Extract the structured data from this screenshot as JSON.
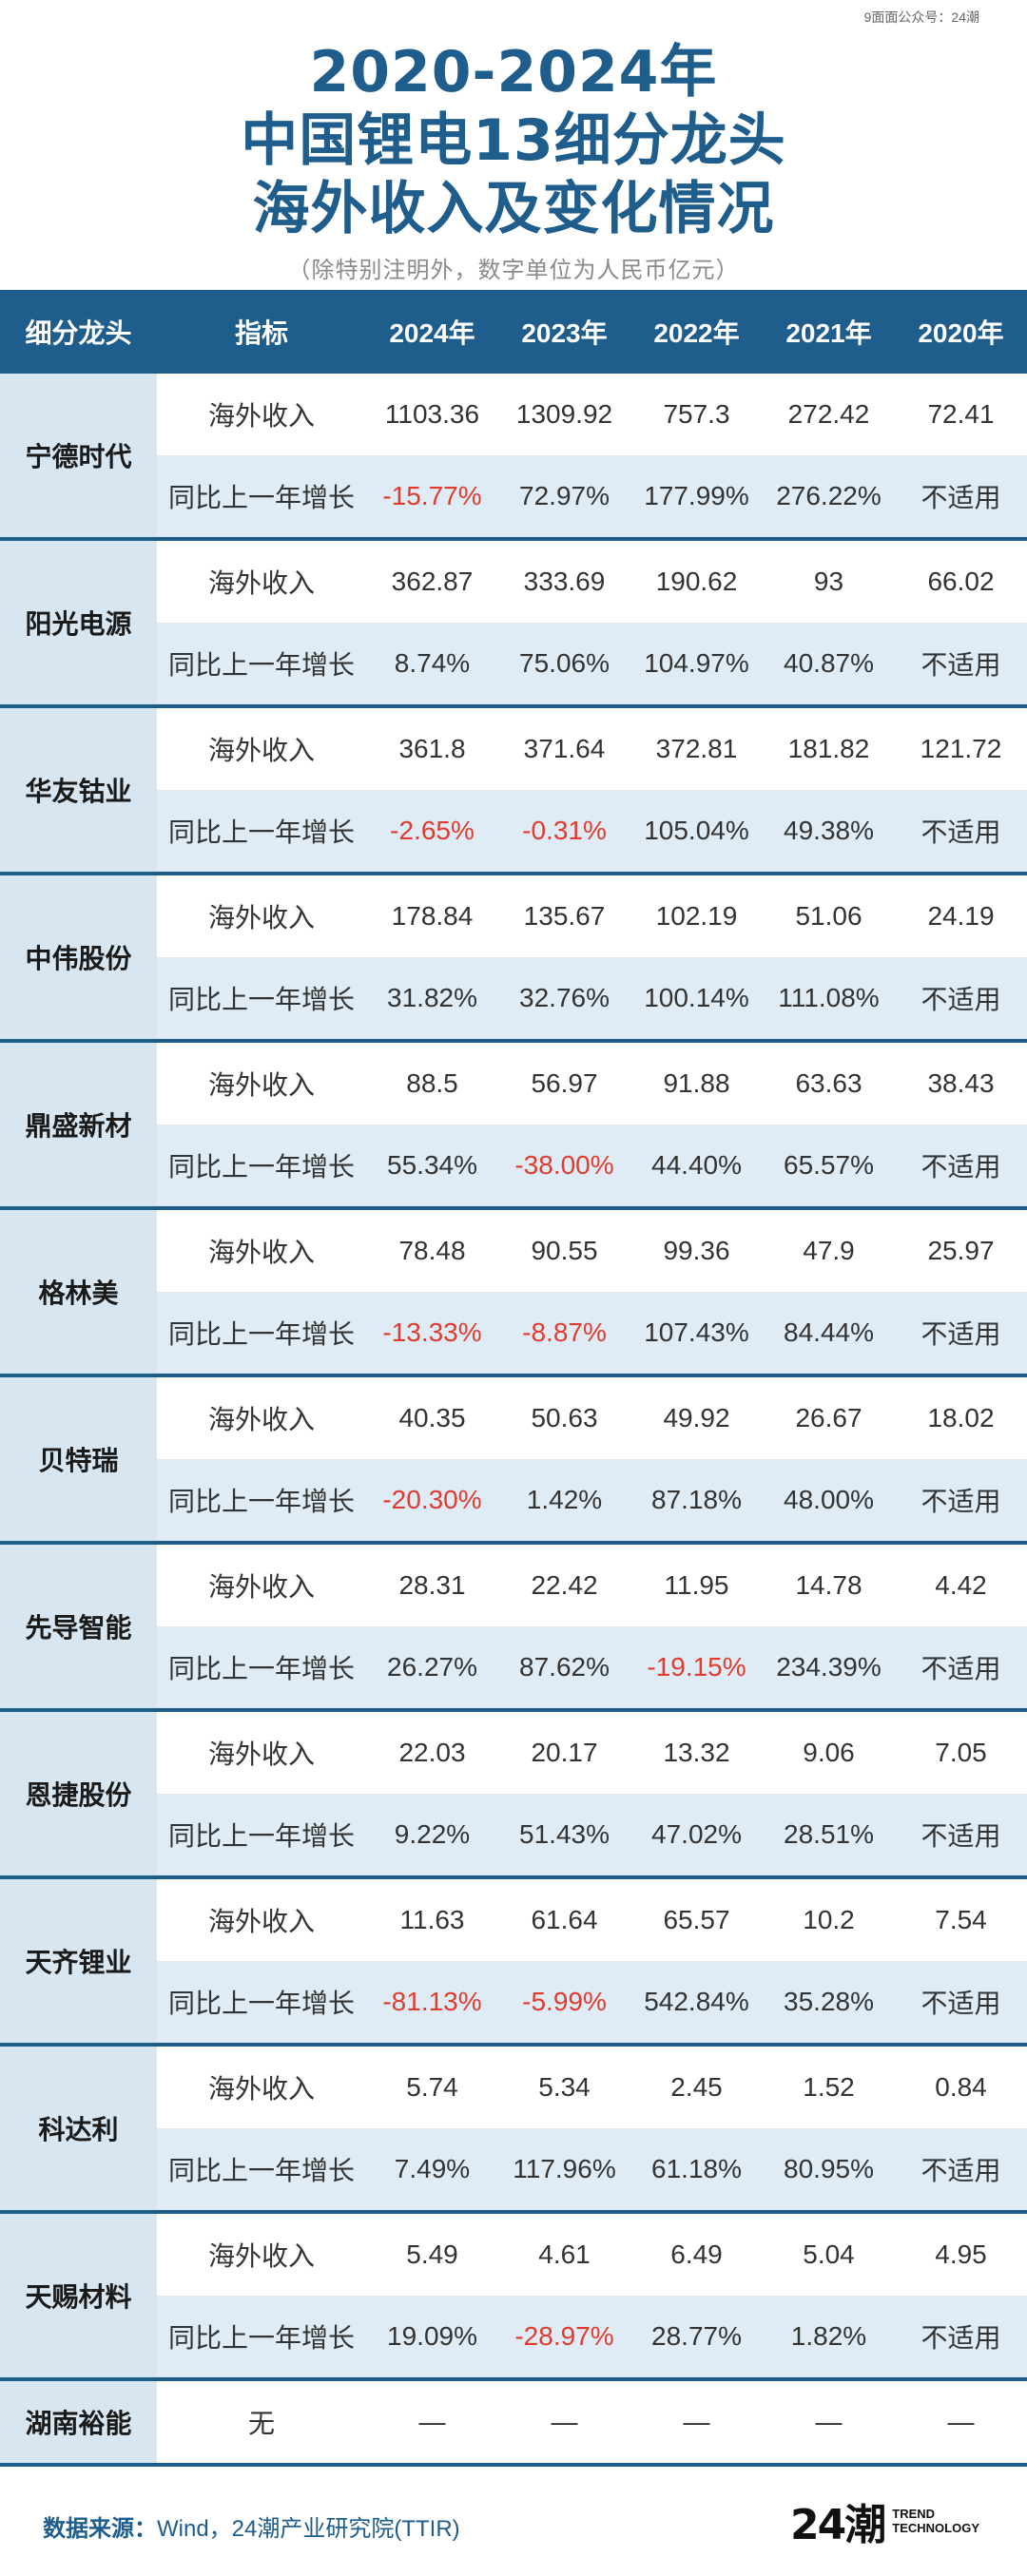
{
  "watermark": "9面面公众号：24潮",
  "title": {
    "line1": "2020-2024年",
    "line2": "中国锂电13细分龙头",
    "line3": "海外收入及变化情况",
    "note": "（除特别注明外，数字单位为人民币亿元）"
  },
  "table": {
    "headers": [
      "细分龙头",
      "指标",
      "2024年",
      "2023年",
      "2022年",
      "2021年",
      "2020年"
    ],
    "companies": [
      {
        "name": "宁德时代",
        "revenue_label": "海外收入",
        "revenue": [
          "1103.36",
          "1309.92",
          "757.3",
          "272.42",
          "72.41"
        ],
        "growth_label": "同比上一年增长",
        "growth": [
          "-15.77%",
          "72.97%",
          "177.99%",
          "276.22%",
          "不适用"
        ]
      },
      {
        "name": "阳光电源",
        "revenue_label": "海外收入",
        "revenue": [
          "362.87",
          "333.69",
          "190.62",
          "93",
          "66.02"
        ],
        "growth_label": "同比上一年增长",
        "growth": [
          "8.74%",
          "75.06%",
          "104.97%",
          "40.87%",
          "不适用"
        ]
      },
      {
        "name": "华友钴业",
        "revenue_label": "海外收入",
        "revenue": [
          "361.8",
          "371.64",
          "372.81",
          "181.82",
          "121.72"
        ],
        "growth_label": "同比上一年增长",
        "growth": [
          "-2.65%",
          "-0.31%",
          "105.04%",
          "49.38%",
          "不适用"
        ]
      },
      {
        "name": "中伟股份",
        "revenue_label": "海外收入",
        "revenue": [
          "178.84",
          "135.67",
          "102.19",
          "51.06",
          "24.19"
        ],
        "growth_label": "同比上一年增长",
        "growth": [
          "31.82%",
          "32.76%",
          "100.14%",
          "111.08%",
          "不适用"
        ]
      },
      {
        "name": "鼎盛新材",
        "revenue_label": "海外收入",
        "revenue": [
          "88.5",
          "56.97",
          "91.88",
          "63.63",
          "38.43"
        ],
        "growth_label": "同比上一年增长",
        "growth": [
          "55.34%",
          "-38.00%",
          "44.40%",
          "65.57%",
          "不适用"
        ]
      },
      {
        "name": "格林美",
        "revenue_label": "海外收入",
        "revenue": [
          "78.48",
          "90.55",
          "99.36",
          "47.9",
          "25.97"
        ],
        "growth_label": "同比上一年增长",
        "growth": [
          "-13.33%",
          "-8.87%",
          "107.43%",
          "84.44%",
          "不适用"
        ]
      },
      {
        "name": "贝特瑞",
        "revenue_label": "海外收入",
        "revenue": [
          "40.35",
          "50.63",
          "49.92",
          "26.67",
          "18.02"
        ],
        "growth_label": "同比上一年增长",
        "growth": [
          "-20.30%",
          "1.42%",
          "87.18%",
          "48.00%",
          "不适用"
        ]
      },
      {
        "name": "先导智能",
        "revenue_label": "海外收入",
        "revenue": [
          "28.31",
          "22.42",
          "11.95",
          "14.78",
          "4.42"
        ],
        "growth_label": "同比上一年增长",
        "growth": [
          "26.27%",
          "87.62%",
          "-19.15%",
          "234.39%",
          "不适用"
        ]
      },
      {
        "name": "恩捷股份",
        "revenue_label": "海外收入",
        "revenue": [
          "22.03",
          "20.17",
          "13.32",
          "9.06",
          "7.05"
        ],
        "growth_label": "同比上一年增长",
        "growth": [
          "9.22%",
          "51.43%",
          "47.02%",
          "28.51%",
          "不适用"
        ]
      },
      {
        "name": "天齐锂业",
        "revenue_label": "海外收入",
        "revenue": [
          "11.63",
          "61.64",
          "65.57",
          "10.2",
          "7.54"
        ],
        "growth_label": "同比上一年增长",
        "growth": [
          "-81.13%",
          "-5.99%",
          "542.84%",
          "35.28%",
          "不适用"
        ]
      },
      {
        "name": "科达利",
        "revenue_label": "海外收入",
        "revenue": [
          "5.74",
          "5.34",
          "2.45",
          "1.52",
          "0.84"
        ],
        "growth_label": "同比上一年增长",
        "growth": [
          "7.49%",
          "117.96%",
          "61.18%",
          "80.95%",
          "不适用"
        ]
      },
      {
        "name": "天赐材料",
        "revenue_label": "海外收入",
        "revenue": [
          "5.49",
          "4.61",
          "6.49",
          "5.04",
          "4.95"
        ],
        "growth_label": "同比上一年增长",
        "growth": [
          "19.09%",
          "-28.97%",
          "28.77%",
          "1.82%",
          "不适用"
        ]
      }
    ],
    "last_row": {
      "name": "湖南裕能",
      "indicator": "无",
      "values": [
        "—",
        "—",
        "—",
        "—",
        "—"
      ]
    }
  },
  "footer": {
    "label": "数据来源：",
    "text": "Wind，24潮产业研究院(TTIR)"
  },
  "logo": {
    "mark": "24潮",
    "line1": "TREND",
    "line2": "TECHNOLOGY"
  },
  "colors": {
    "header_blue": "#1f5d8c",
    "row_alt": "#dfecf5",
    "company_bg": "#d7e6f0",
    "negative_red": "#e23b2e"
  }
}
